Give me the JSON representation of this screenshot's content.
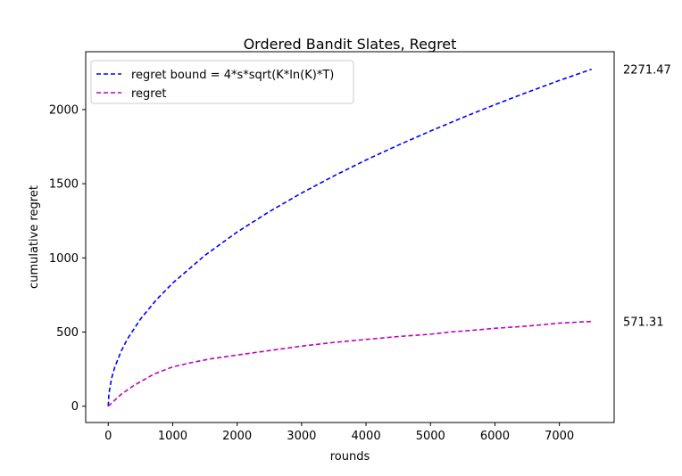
{
  "chart_data": {
    "type": "line",
    "title": "Ordered Bandit Slates, Regret",
    "xlabel": "rounds",
    "ylabel": "cumulative regret",
    "xlim": [
      -350,
      7850
    ],
    "ylim": [
      -110,
      2390
    ],
    "xticks": [
      0,
      1000,
      2000,
      3000,
      4000,
      5000,
      6000,
      7000
    ],
    "yticks": [
      0,
      500,
      1000,
      1500,
      2000
    ],
    "grid": false,
    "legend_position": "upper-left",
    "series": [
      {
        "name": "regret bound = 4*s*sqrt(K*ln(K)*T)",
        "color": "#0000ff",
        "style": "dashed",
        "x": [
          0,
          10,
          50,
          100,
          200,
          300,
          500,
          750,
          1000,
          1500,
          2000,
          2500,
          3000,
          3500,
          4000,
          4500,
          5000,
          5500,
          6000,
          6500,
          7000,
          7500
        ],
        "y": [
          0,
          83,
          185,
          262,
          371,
          455,
          587,
          719,
          830,
          1017,
          1174,
          1312,
          1437,
          1552,
          1660,
          1760,
          1855,
          1946,
          2033,
          2116,
          2196,
          2271.47
        ]
      },
      {
        "name": "regret",
        "color": "#bf00bf",
        "style": "dashed",
        "x": [
          0,
          100,
          200,
          400,
          700,
          1000,
          1300,
          1600,
          2000,
          2500,
          3000,
          3500,
          4000,
          4500,
          5000,
          5300,
          5600,
          6000,
          6500,
          7000,
          7500
        ],
        "y": [
          0,
          40,
          80,
          140,
          215,
          265,
          295,
          320,
          345,
          375,
          405,
          430,
          450,
          470,
          485,
          500,
          510,
          525,
          540,
          560,
          571.31
        ]
      }
    ],
    "end_labels": [
      "2271.47",
      "571.31"
    ]
  }
}
